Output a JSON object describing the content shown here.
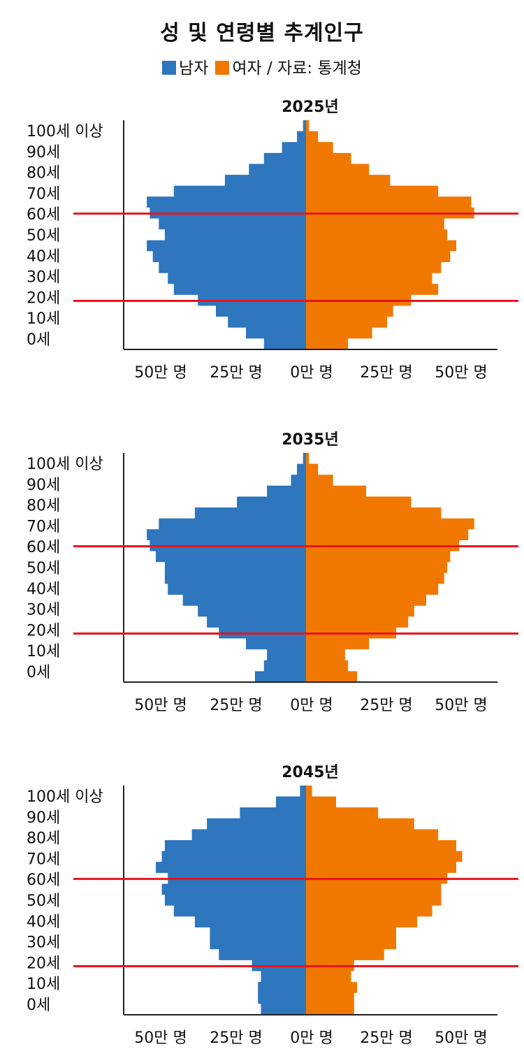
{
  "title": "성 및 연령별 추계인구",
  "legend": {
    "male_label": "남자",
    "female_label": "여자",
    "source": "/ 자료: 통계청"
  },
  "colors": {
    "male": "#2e76bd",
    "female": "#f07800",
    "marker_line": "#e8141c",
    "axis": "#222222"
  },
  "chart_data": [
    {
      "type": "population-pyramid",
      "title": "2025년",
      "y_tick_labels": [
        "100세 이상",
        "90세",
        "80세",
        "70세",
        "60세",
        "50세",
        "40세",
        "30세",
        "20세",
        "10세",
        "0세"
      ],
      "x_tick_labels": [
        "50만 명",
        "25만 명",
        "0만 명",
        "25만 명",
        "50만 명"
      ],
      "x_unit": "만 명",
      "xlim": [
        -60,
        60
      ],
      "reference_lines_age": [
        60,
        20
      ],
      "ages": [
        0,
        5,
        10,
        15,
        20,
        25,
        30,
        35,
        40,
        45,
        50,
        55,
        60,
        65,
        70,
        75,
        80,
        85,
        90,
        95,
        100
      ],
      "series": [
        {
          "name": "남자",
          "values": [
            14,
            20,
            26,
            30,
            36,
            44,
            46,
            49,
            51,
            53,
            47,
            49,
            52,
            53,
            44,
            27,
            19,
            14,
            8,
            3,
            1
          ]
        },
        {
          "name": "여자",
          "values": [
            14,
            22,
            27,
            29,
            35,
            44,
            42,
            45,
            48,
            50,
            47,
            46,
            56,
            55,
            44,
            28,
            21,
            15,
            9,
            4,
            1
          ]
        }
      ]
    },
    {
      "type": "population-pyramid",
      "title": "2035년",
      "y_tick_labels": [
        "100세 이상",
        "90세",
        "80세",
        "70세",
        "60세",
        "50세",
        "40세",
        "30세",
        "20세",
        "10세",
        "0세"
      ],
      "x_tick_labels": [
        "50만 명",
        "25만 명",
        "0만 명",
        "25만 명",
        "50만 명"
      ],
      "x_unit": "만 명",
      "xlim": [
        -60,
        60
      ],
      "reference_lines_age": [
        60,
        20
      ],
      "ages": [
        0,
        5,
        10,
        15,
        20,
        25,
        30,
        35,
        40,
        45,
        50,
        55,
        60,
        65,
        70,
        75,
        80,
        85,
        90,
        95,
        100
      ],
      "series": [
        {
          "name": "남자",
          "values": [
            17,
            14,
            13,
            20,
            29,
            33,
            36,
            41,
            46,
            47,
            47,
            50,
            52,
            53,
            49,
            37,
            23,
            13,
            5,
            3,
            1
          ]
        },
        {
          "name": "여자",
          "values": [
            17,
            14,
            13,
            21,
            30,
            34,
            36,
            40,
            44,
            46,
            47,
            48,
            51,
            54,
            56,
            45,
            35,
            20,
            9,
            4,
            1
          ]
        }
      ]
    },
    {
      "type": "population-pyramid",
      "title": "2045년",
      "y_tick_labels": [
        "100세 이상",
        "90세",
        "80세",
        "70세",
        "60세",
        "50세",
        "40세",
        "30세",
        "20세",
        "10세",
        "0세"
      ],
      "x_tick_labels": [
        "50만 명",
        "25만 명",
        "0만 명",
        "25만 명",
        "50만 명"
      ],
      "x_unit": "만 명",
      "xlim": [
        -60,
        60
      ],
      "reference_lines_age": [
        60,
        20
      ],
      "ages": [
        0,
        5,
        10,
        15,
        20,
        25,
        30,
        35,
        40,
        45,
        50,
        55,
        60,
        65,
        70,
        75,
        80,
        85,
        90,
        95,
        100
      ],
      "series": [
        {
          "name": "남자",
          "values": [
            15,
            16,
            16,
            15,
            18,
            29,
            32,
            32,
            37,
            44,
            47,
            48,
            46,
            50,
            48,
            47,
            38,
            33,
            22,
            10,
            2
          ]
        },
        {
          "name": "여자",
          "values": [
            16,
            16,
            17,
            15,
            16,
            26,
            30,
            30,
            37,
            42,
            45,
            45,
            47,
            50,
            52,
            50,
            44,
            36,
            24,
            10,
            2
          ]
        }
      ]
    }
  ]
}
